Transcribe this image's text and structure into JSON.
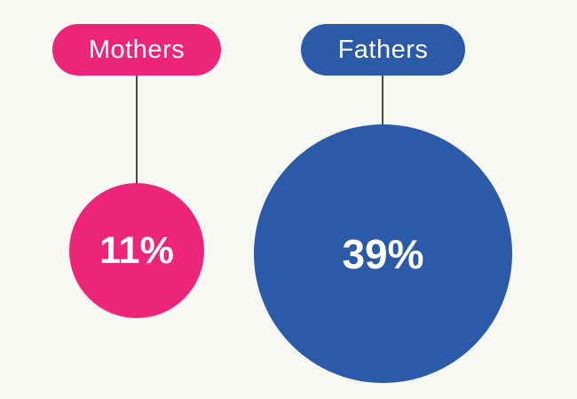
{
  "chart_data": {
    "type": "bubble",
    "categories": [
      "Mothers",
      "Fathers"
    ],
    "values": [
      11,
      39
    ],
    "unit": "%",
    "value_labels": [
      "11%",
      "39%"
    ],
    "legend_position": "none",
    "grid": false,
    "colors": {
      "mothers": "#EC2578",
      "fathers": "#2B5AA8",
      "background": "#F7F8F2",
      "connector_line": "#4A4A4A",
      "text": "#FFFFFF"
    }
  },
  "bubbles": [
    {
      "label": "Mothers",
      "value_label": "11%"
    },
    {
      "label": "Fathers",
      "value_label": "39%"
    }
  ]
}
